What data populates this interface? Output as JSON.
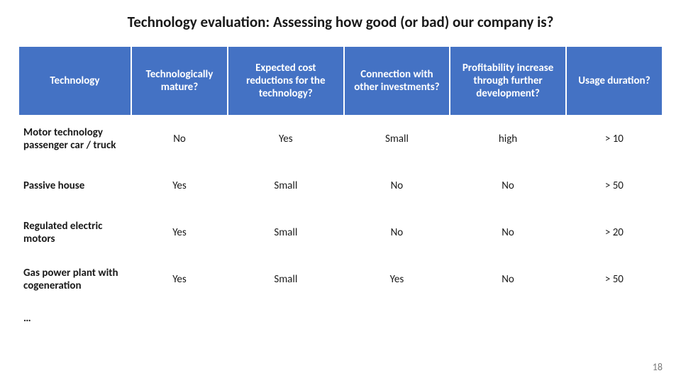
{
  "title": "Technology evaluation: Assessing how good (or bad) our company is?",
  "table": {
    "header_bg": "#4472c4",
    "header_fg": "#ffffff",
    "cell_bg": "#ffffff",
    "cell_fg": "#1a1a1a",
    "border_color": "#ffffff",
    "font_family": "Calibri",
    "header_fontsize": 15,
    "cell_fontsize": 15,
    "col_widths_pct": [
      17.5,
      15,
      18,
      16.5,
      18,
      15
    ],
    "columns": [
      "Technology",
      "Technologically mature?",
      "Expected cost reductions for the technology?",
      "Connection with other investments?",
      "Profitability increase through further development?",
      "Usage duration?"
    ],
    "rows": [
      [
        "Motor technology passenger car / truck",
        "No",
        "Yes",
        "Small",
        "high",
        "> 10"
      ],
      [
        "Passive house",
        "Yes",
        "Small",
        "No",
        "No",
        "> 50"
      ],
      [
        "Regulated electric motors",
        "Yes",
        "Small",
        "No",
        "No",
        "> 20"
      ],
      [
        "Gas power plant with cogeneration",
        "Yes",
        "Small",
        "Yes",
        "No",
        "> 50"
      ],
      [
        "…",
        "",
        "",
        "",
        "",
        ""
      ]
    ]
  },
  "page_number": "18"
}
